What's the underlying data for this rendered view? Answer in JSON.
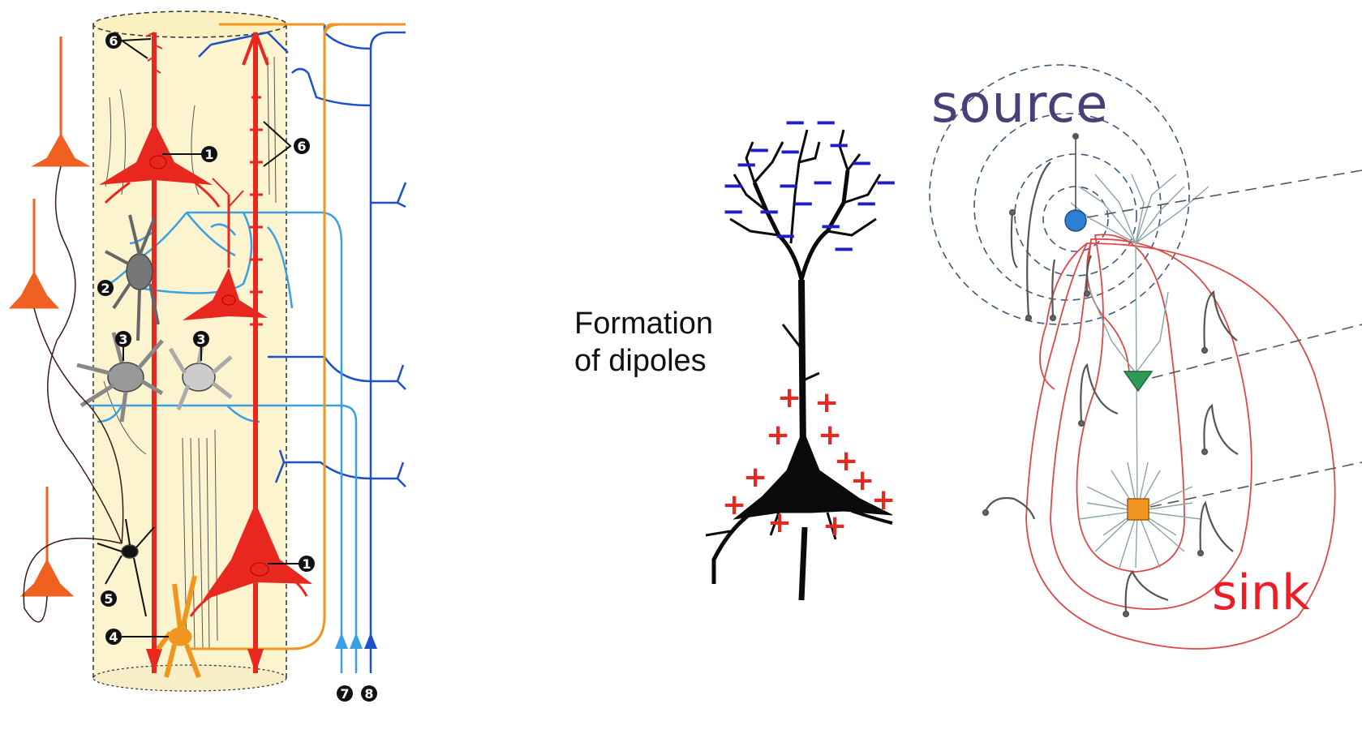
{
  "dipole_label": {
    "line1": "Formation",
    "line2": "of dipoles"
  },
  "source_label": "source",
  "sink_label": "sink",
  "column_markers": {
    "m1": "1",
    "m2": "2",
    "m3": "3",
    "m4": "4",
    "m5": "5",
    "m6": "6",
    "m7": "7",
    "m8": "8"
  },
  "colors": {
    "pyramidal": "#e8281e",
    "dendrite_afferent": "#1e50c8",
    "light_afferent": "#3aa0e6",
    "orange_fiber": "#f0961e",
    "column_fill": "#fbf4cf",
    "positive_charge": "#e8281e",
    "negative_charge": "#1e1ec8",
    "source_text": "#4b3f78",
    "sink_text": "#ee1c24",
    "field_lines": "#e04848"
  },
  "charges": {
    "negative": "−",
    "positive": "+"
  }
}
